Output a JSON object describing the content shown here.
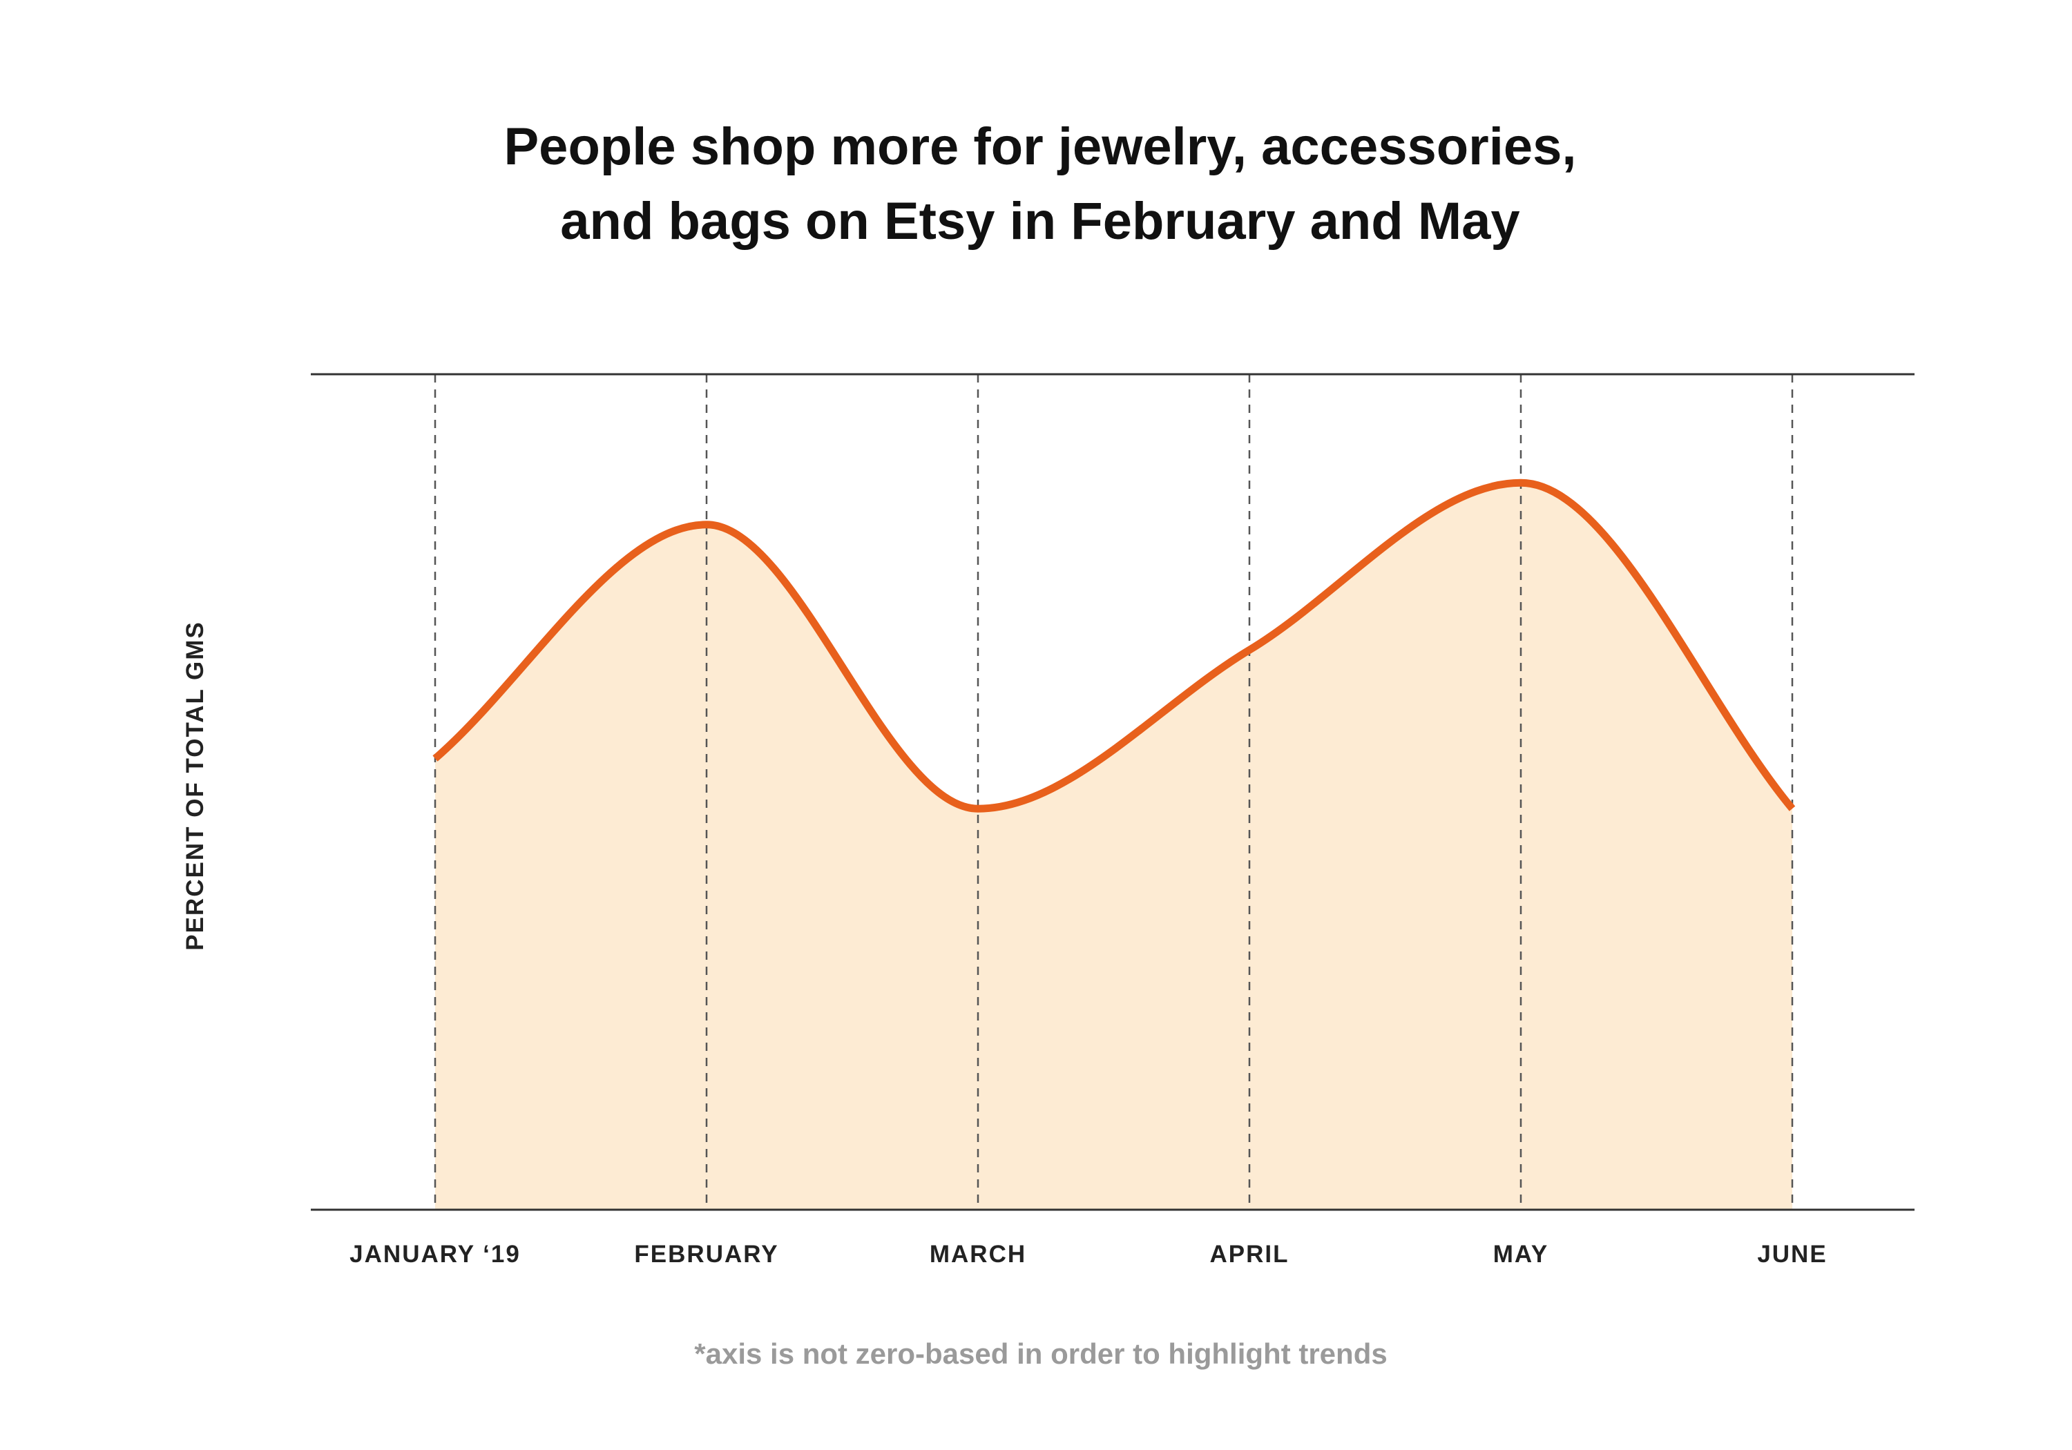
{
  "chart_data": {
    "type": "area",
    "title_lines": [
      "People shop more for jewelry, accessories,",
      "and bags on Etsy in February and May"
    ],
    "ylabel": "PERCENT OF TOTAL GMS",
    "xlabel": "",
    "categories": [
      "JANUARY ‘19",
      "FEBRUARY",
      "MARCH",
      "APRIL",
      "MAY",
      "JUNE"
    ],
    "series": [
      {
        "values": [
          54,
          82,
          48,
          67,
          87,
          48
        ]
      }
    ],
    "ylim": [
      0,
      100
    ],
    "y_axis_note": "not zero-based; values are relative",
    "footnote": "*axis is not zero-based in order to highlight trends",
    "grid": "vertical dashed lines at each month",
    "colors": {
      "line": "#e8601c",
      "fill": "#fdebd3",
      "axis": "#333333",
      "grid": "#555555"
    }
  }
}
